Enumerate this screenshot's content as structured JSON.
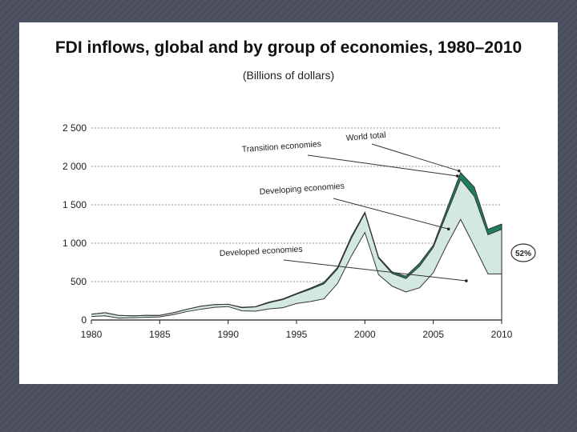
{
  "slide": {
    "background": "#4d5160"
  },
  "chart_data": {
    "type": "area",
    "title": "FDI inflows, global and by group of economies, 1980–2010",
    "subtitle": "(Billions of dollars)",
    "xlabel": "",
    "ylabel": "",
    "xlim": [
      1980,
      2010
    ],
    "ylim": [
      0,
      2500
    ],
    "yticks": [
      0,
      500,
      1000,
      1500,
      2000,
      2500
    ],
    "ytick_labels": [
      "0",
      "500",
      "1 000",
      "1 500",
      "2 000",
      "2 500"
    ],
    "xticks": [
      1980,
      1985,
      1990,
      1995,
      2000,
      2005,
      2010
    ],
    "xtick_labels": [
      "1980",
      "1985",
      "1990",
      "1995",
      "2000",
      "2005",
      "2010"
    ],
    "grid": "horizontal dotted",
    "x": [
      1980,
      1981,
      1982,
      1983,
      1984,
      1985,
      1986,
      1987,
      1988,
      1989,
      1990,
      1991,
      1992,
      1993,
      1994,
      1995,
      1996,
      1997,
      1998,
      1999,
      2000,
      2001,
      2002,
      2003,
      2004,
      2005,
      2006,
      2007,
      2008,
      2009,
      2010
    ],
    "series": [
      {
        "name": "Developed economies",
        "values": [
          45,
          55,
          25,
          30,
          35,
          40,
          70,
          110,
          140,
          165,
          175,
          120,
          115,
          145,
          160,
          215,
          240,
          275,
          475,
          830,
          1140,
          590,
          440,
          365,
          420,
          615,
          980,
          1310,
          960,
          600,
          600
        ]
      },
      {
        "name": "Developing economies",
        "values": [
          30,
          40,
          35,
          25,
          25,
          20,
          25,
          30,
          40,
          35,
          30,
          40,
          55,
          80,
          105,
          120,
          160,
          195,
          190,
          230,
          250,
          215,
          165,
          175,
          280,
          330,
          410,
          520,
          650,
          510,
          580
        ]
      },
      {
        "name": "Transition economies",
        "values": [
          0,
          0,
          0,
          0,
          0,
          0,
          0,
          0,
          0,
          0,
          0,
          5,
          5,
          10,
          10,
          10,
          15,
          20,
          20,
          25,
          15,
          15,
          20,
          30,
          40,
          30,
          60,
          90,
          120,
          70,
          70
        ]
      }
    ],
    "world_total": [
      75,
      95,
      60,
      55,
      60,
      60,
      95,
      140,
      180,
      200,
      205,
      165,
      175,
      235,
      275,
      345,
      415,
      490,
      685,
      1085,
      1405,
      820,
      625,
      570,
      740,
      975,
      1450,
      1920,
      1730,
      1180,
      1250
    ],
    "annotations": [
      {
        "text": "World total",
        "points_to": "world total at 2007"
      },
      {
        "text": "Transition economies",
        "points_to": "transition economies band at 2007"
      },
      {
        "text": "Developing economies",
        "points_to": "developing economies band at 2007"
      },
      {
        "text": "Developed economies",
        "points_to": "developed economies band at 2008"
      }
    ],
    "share_badge": {
      "text": "52%",
      "note": "developing + transition share in 2010"
    },
    "colors": {
      "developed_fill": "#ffffff",
      "developing_fill": "#d3e9e0",
      "transition_fill": "#1f7e62",
      "line": "#333333",
      "grid": "#999999"
    }
  }
}
